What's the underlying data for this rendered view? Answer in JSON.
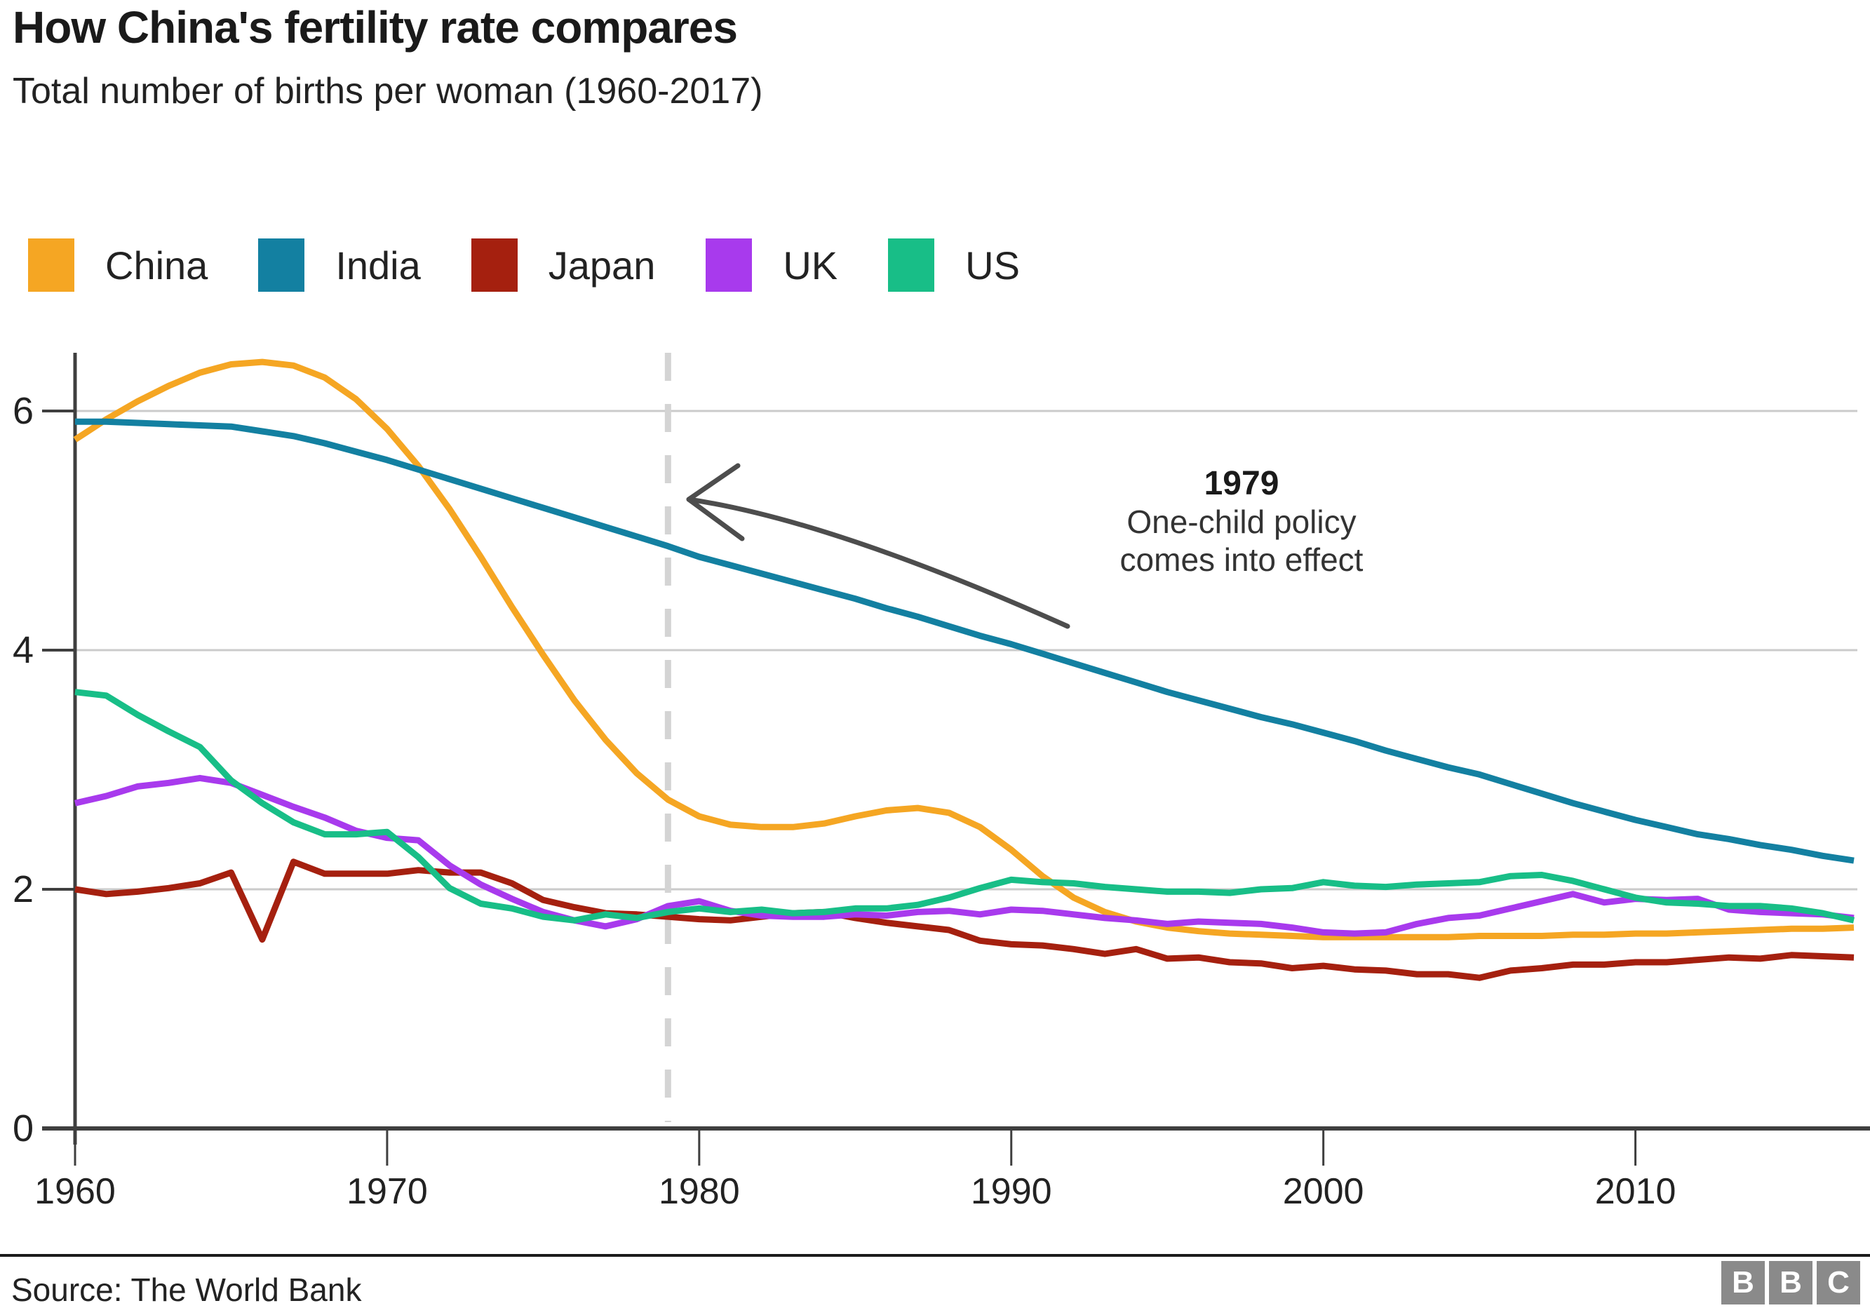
{
  "header": {
    "title": "How China's fertility rate compares",
    "subtitle": "Total number of births per woman (1960-2017)"
  },
  "chart_data": {
    "type": "line",
    "title": "How China's fertility rate compares",
    "xlabel": "",
    "ylabel": "",
    "xlim": [
      1960,
      2017
    ],
    "ylim": [
      0,
      6.6
    ],
    "xticks": [
      1960,
      1970,
      1980,
      1990,
      2000,
      2010
    ],
    "yticks": [
      0,
      2,
      4,
      6
    ],
    "grid": true,
    "legend_position": "top",
    "years": [
      1960,
      1961,
      1962,
      1963,
      1964,
      1965,
      1966,
      1967,
      1968,
      1969,
      1970,
      1971,
      1972,
      1973,
      1974,
      1975,
      1976,
      1977,
      1978,
      1979,
      1980,
      1981,
      1982,
      1983,
      1984,
      1985,
      1986,
      1987,
      1988,
      1989,
      1990,
      1991,
      1992,
      1993,
      1994,
      1995,
      1996,
      1997,
      1998,
      1999,
      2000,
      2001,
      2002,
      2003,
      2004,
      2005,
      2006,
      2007,
      2008,
      2009,
      2010,
      2011,
      2012,
      2013,
      2014,
      2015,
      2016,
      2017
    ],
    "series": [
      {
        "name": "China",
        "color": "#F5A623",
        "values": [
          5.76,
          5.93,
          6.08,
          6.21,
          6.32,
          6.39,
          6.41,
          6.38,
          6.28,
          6.1,
          5.85,
          5.54,
          5.18,
          4.78,
          4.36,
          3.96,
          3.58,
          3.25,
          2.97,
          2.75,
          2.61,
          2.54,
          2.52,
          2.52,
          2.55,
          2.61,
          2.66,
          2.68,
          2.64,
          2.52,
          2.33,
          2.11,
          1.93,
          1.81,
          1.73,
          1.68,
          1.65,
          1.63,
          1.62,
          1.61,
          1.6,
          1.6,
          1.6,
          1.6,
          1.6,
          1.61,
          1.61,
          1.61,
          1.62,
          1.62,
          1.63,
          1.63,
          1.64,
          1.65,
          1.66,
          1.67,
          1.67,
          1.68
        ]
      },
      {
        "name": "India",
        "color": "#1380A1",
        "values": [
          5.91,
          5.91,
          5.9,
          5.89,
          5.88,
          5.87,
          5.83,
          5.79,
          5.73,
          5.66,
          5.59,
          5.51,
          5.43,
          5.35,
          5.27,
          5.19,
          5.11,
          5.03,
          4.95,
          4.87,
          4.78,
          4.71,
          4.64,
          4.57,
          4.5,
          4.43,
          4.35,
          4.28,
          4.2,
          4.12,
          4.05,
          3.97,
          3.89,
          3.81,
          3.73,
          3.65,
          3.58,
          3.51,
          3.44,
          3.38,
          3.31,
          3.24,
          3.16,
          3.09,
          3.02,
          2.96,
          2.88,
          2.8,
          2.72,
          2.65,
          2.58,
          2.52,
          2.46,
          2.42,
          2.37,
          2.33,
          2.28,
          2.24
        ]
      },
      {
        "name": "Japan",
        "color": "#A5200F",
        "values": [
          2.0,
          1.96,
          1.98,
          2.01,
          2.05,
          2.14,
          1.58,
          2.23,
          2.13,
          2.13,
          2.13,
          2.16,
          2.14,
          2.14,
          2.05,
          1.91,
          1.85,
          1.8,
          1.79,
          1.77,
          1.75,
          1.74,
          1.77,
          1.8,
          1.81,
          1.76,
          1.72,
          1.69,
          1.66,
          1.57,
          1.54,
          1.53,
          1.5,
          1.46,
          1.5,
          1.42,
          1.43,
          1.39,
          1.38,
          1.34,
          1.36,
          1.33,
          1.32,
          1.29,
          1.29,
          1.26,
          1.32,
          1.34,
          1.37,
          1.37,
          1.39,
          1.39,
          1.41,
          1.43,
          1.42,
          1.45,
          1.44,
          1.43
        ]
      },
      {
        "name": "UK",
        "color": "#A83AED",
        "values": [
          2.72,
          2.78,
          2.86,
          2.89,
          2.93,
          2.89,
          2.79,
          2.69,
          2.6,
          2.49,
          2.43,
          2.41,
          2.2,
          2.04,
          1.92,
          1.81,
          1.74,
          1.69,
          1.75,
          1.86,
          1.9,
          1.82,
          1.78,
          1.77,
          1.77,
          1.79,
          1.78,
          1.81,
          1.82,
          1.79,
          1.83,
          1.82,
          1.79,
          1.76,
          1.74,
          1.71,
          1.73,
          1.72,
          1.71,
          1.68,
          1.64,
          1.63,
          1.64,
          1.71,
          1.76,
          1.78,
          1.84,
          1.9,
          1.96,
          1.89,
          1.92,
          1.91,
          1.92,
          1.83,
          1.81,
          1.8,
          1.79,
          1.76
        ]
      },
      {
        "name": "US",
        "color": "#18BE87",
        "values": [
          3.65,
          3.62,
          3.46,
          3.32,
          3.19,
          2.91,
          2.72,
          2.56,
          2.46,
          2.46,
          2.48,
          2.27,
          2.01,
          1.88,
          1.84,
          1.77,
          1.74,
          1.79,
          1.76,
          1.81,
          1.84,
          1.81,
          1.83,
          1.8,
          1.81,
          1.84,
          1.84,
          1.87,
          1.93,
          2.01,
          2.08,
          2.06,
          2.05,
          2.02,
          2.0,
          1.98,
          1.98,
          1.97,
          2.0,
          2.01,
          2.06,
          2.03,
          2.02,
          2.04,
          2.05,
          2.06,
          2.11,
          2.12,
          2.07,
          2.0,
          1.93,
          1.89,
          1.88,
          1.86,
          1.86,
          1.84,
          1.8,
          1.74
        ]
      }
    ],
    "annotation": {
      "year": 1979,
      "year_label": "1979",
      "line1": "One-child policy",
      "line2": "comes into effect"
    },
    "colors": {
      "grid": "#CBCBCB",
      "dashed_line": "#D4D4D4",
      "axis": "#3F3F3F",
      "arrow": "#4D4D4D",
      "text": "#222222"
    }
  },
  "footer": {
    "source": "Source: The World Bank",
    "logo_letters": [
      "B",
      "B",
      "C"
    ]
  }
}
